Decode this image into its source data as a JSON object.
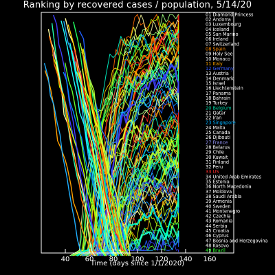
{
  "chart_data": {
    "type": "line",
    "title": "Ranking by recovered cases / population, 5/14/20",
    "xlabel": "Time (days since 1/1/2020)",
    "ylabel": "",
    "xlim": [
      20,
      180
    ],
    "xticks": [
      40,
      60,
      80,
      100,
      120,
      140,
      160
    ],
    "ylim": [
      1,
      49
    ],
    "y_inverted": true,
    "grid": false,
    "legend_position": "right",
    "series": [
      {
        "rank": "01",
        "name": "Diamond Princess",
        "color": "#ffffff"
      },
      {
        "rank": "02",
        "name": "Andorra",
        "color": "#ffffff"
      },
      {
        "rank": "03",
        "name": "Luxembourg",
        "color": "#ffffff"
      },
      {
        "rank": "04",
        "name": "Iceland",
        "color": "#ffffff"
      },
      {
        "rank": "05",
        "name": "San Marino",
        "color": "#ffffff"
      },
      {
        "rank": "06",
        "name": "Ireland",
        "color": "#ffffff"
      },
      {
        "rank": "07",
        "name": "Switzerland",
        "color": "#ffffff"
      },
      {
        "rank": "08",
        "name": "Spain",
        "color": "#ff8c00"
      },
      {
        "rank": "09",
        "name": "Holy See",
        "color": "#ffffff"
      },
      {
        "rank": "10",
        "name": "Monaco",
        "color": "#ffffff"
      },
      {
        "rank": "11",
        "name": "Italy",
        "color": "#ffa500"
      },
      {
        "rank": "12",
        "name": "Germany",
        "color": "#3a5fff"
      },
      {
        "rank": "13",
        "name": "Austria",
        "color": "#ffffff"
      },
      {
        "rank": "14",
        "name": "Denmark",
        "color": "#ffffff"
      },
      {
        "rank": "15",
        "name": "Israel",
        "color": "#ffffff"
      },
      {
        "rank": "16",
        "name": "Liechtenstein",
        "color": "#ffffff"
      },
      {
        "rank": "17",
        "name": "Panama",
        "color": "#ffffff"
      },
      {
        "rank": "18",
        "name": "Bahrain",
        "color": "#ffffff"
      },
      {
        "rank": "19",
        "name": "Turkey",
        "color": "#ffffff"
      },
      {
        "rank": "20",
        "name": "Belgium",
        "color": "#00d0a0"
      },
      {
        "rank": "21",
        "name": "Qatar",
        "color": "#ffffff"
      },
      {
        "rank": "22",
        "name": "Iran",
        "color": "#ffffff"
      },
      {
        "rank": "23",
        "name": "Singapore",
        "color": "#00b0ff"
      },
      {
        "rank": "24",
        "name": "Malta",
        "color": "#ffffff"
      },
      {
        "rank": "25",
        "name": "Canada",
        "color": "#ffffff"
      },
      {
        "rank": "26",
        "name": "Djibouti",
        "color": "#ffffff"
      },
      {
        "rank": "27",
        "name": "France",
        "color": "#9a9aff"
      },
      {
        "rank": "28",
        "name": "Belarus",
        "color": "#ffffff"
      },
      {
        "rank": "29",
        "name": "Chile",
        "color": "#ffffff"
      },
      {
        "rank": "30",
        "name": "Kuwait",
        "color": "#ffffff"
      },
      {
        "rank": "31",
        "name": "Finland",
        "color": "#ffffff"
      },
      {
        "rank": "32",
        "name": "Peru",
        "color": "#ffffff"
      },
      {
        "rank": "33",
        "name": "US",
        "color": "#ff3030"
      },
      {
        "rank": "34",
        "name": "United Arab Emirates",
        "color": "#ffffff"
      },
      {
        "rank": "35",
        "name": "Estonia",
        "color": "#ffffff"
      },
      {
        "rank": "36",
        "name": "North Macedonia",
        "color": "#ffffff"
      },
      {
        "rank": "37",
        "name": "Moldova",
        "color": "#ffffff"
      },
      {
        "rank": "38",
        "name": "Saudi Arabia",
        "color": "#ffffff"
      },
      {
        "rank": "39",
        "name": "Armenia",
        "color": "#ffffff"
      },
      {
        "rank": "40",
        "name": "Sweden",
        "color": "#ffffff"
      },
      {
        "rank": "41",
        "name": "Montenegro",
        "color": "#ffffff"
      },
      {
        "rank": "42",
        "name": "Czechia",
        "color": "#ffffff"
      },
      {
        "rank": "43",
        "name": "Romania",
        "color": "#ffffff"
      },
      {
        "rank": "44",
        "name": "Serbia",
        "color": "#ffffff"
      },
      {
        "rank": "45",
        "name": "Croatia",
        "color": "#ffffff"
      },
      {
        "rank": "46",
        "name": "Cyprus",
        "color": "#ffffff"
      },
      {
        "rank": "47",
        "name": "Bosnia and Herzegovina",
        "color": "#ffffff"
      },
      {
        "rank": "48",
        "name": "Kosovo",
        "color": "#ffffff"
      },
      {
        "rank": "49",
        "name": "Brazil",
        "color": "#30ff30"
      }
    ]
  }
}
